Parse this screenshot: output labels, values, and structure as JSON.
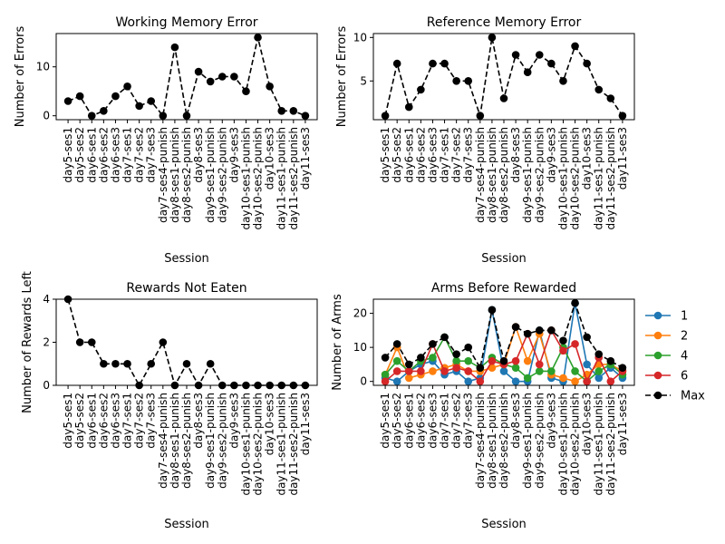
{
  "sessions": [
    "day5-ses1",
    "day5-ses2",
    "day6-ses1",
    "day6-ses2",
    "day6-ses3",
    "day7-ses1",
    "day7-ses2",
    "day7-ses3",
    "day7-ses4-punish",
    "day8-ses1-punish",
    "day8-ses2-punish",
    "day8-ses3",
    "day9-ses1-punish",
    "day9-ses2-punish",
    "day9-ses3",
    "day10-ses1-punish",
    "day10-ses2-punish",
    "day10-ses3",
    "day11-ses1-punish",
    "day11-ses2-punish",
    "day11-ses3"
  ],
  "chart_data": [
    {
      "type": "line",
      "title": "Working Memory Error",
      "xlabel": "Session",
      "ylabel": "Number of Errors",
      "yticks": [
        0,
        10
      ],
      "ylim": [
        -0.8,
        16.8
      ],
      "series": [
        {
          "values": [
            3,
            4,
            0,
            1,
            4,
            6,
            2,
            3,
            0,
            14,
            0,
            9,
            7,
            8,
            8,
            5,
            16,
            6,
            1,
            1,
            0
          ],
          "style": "dashed",
          "color": "#000000"
        }
      ]
    },
    {
      "type": "line",
      "title": "Reference Memory Error",
      "xlabel": "Session",
      "ylabel": "Number of Errors",
      "yticks": [
        5,
        10
      ],
      "ylim": [
        0.55,
        10.45
      ],
      "series": [
        {
          "values": [
            1,
            7,
            2,
            4,
            7,
            7,
            5,
            5,
            1,
            10,
            3,
            8,
            6,
            8,
            7,
            5,
            9,
            7,
            4,
            3,
            1
          ],
          "style": "dashed",
          "color": "#000000"
        }
      ]
    },
    {
      "type": "line",
      "title": "Rewards Not Eaten",
      "xlabel": "Session",
      "ylabel": "Number of Rewards Left",
      "yticks": [
        0,
        2,
        4
      ],
      "ylim": [
        0,
        4
      ],
      "series": [
        {
          "values": [
            4,
            2,
            2,
            1,
            1,
            1,
            0,
            1,
            2,
            0,
            1,
            0,
            1,
            0,
            0,
            0,
            0,
            0,
            0,
            0,
            0
          ],
          "style": "dashed",
          "color": "#000000"
        }
      ]
    },
    {
      "type": "line",
      "title": "Arms Before Rewarded",
      "xlabel": "Session",
      "ylabel": "Number of Arms",
      "yticks": [
        0,
        10,
        20
      ],
      "ylim": [
        -1.15,
        24.15
      ],
      "legend_position": "right",
      "series": [
        {
          "name": "1",
          "color": "#1f77b4",
          "values": [
            1,
            0,
            3,
            5,
            6,
            2,
            3,
            0,
            1,
            21,
            3,
            0,
            0,
            15,
            1,
            0,
            23,
            5,
            1,
            4,
            1
          ]
        },
        {
          "name": "2",
          "color": "#ff7f0e",
          "values": [
            2,
            10,
            1,
            2,
            3,
            4,
            5,
            3,
            3,
            4,
            5,
            16,
            6,
            14,
            2,
            1,
            0,
            2,
            5,
            5,
            3
          ]
        },
        {
          "name": "4",
          "color": "#2ca02c",
          "values": [
            2,
            6,
            3,
            6,
            7,
            13,
            6,
            6,
            4,
            7,
            5,
            4,
            1,
            3,
            3,
            10,
            3,
            0,
            3,
            5,
            2
          ]
        },
        {
          "name": "6",
          "color": "#d62728",
          "values": [
            0,
            3,
            3,
            3,
            11,
            3,
            4,
            3,
            0,
            6,
            5,
            6,
            14,
            5,
            15,
            9,
            11,
            0,
            7,
            0,
            3
          ]
        },
        {
          "name": "Max",
          "color": "#000000",
          "style": "dashed",
          "values": [
            7,
            11,
            5,
            7,
            11,
            13,
            8,
            10,
            4,
            21,
            6,
            16,
            14,
            15,
            15,
            12,
            23,
            13,
            8,
            6,
            4
          ]
        }
      ]
    }
  ]
}
